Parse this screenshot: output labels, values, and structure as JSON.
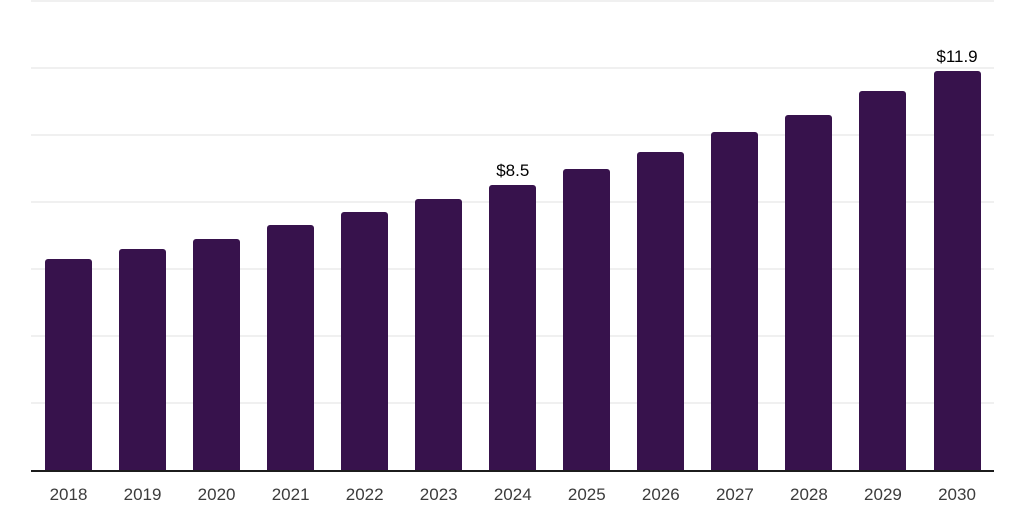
{
  "chart_data": {
    "type": "bar",
    "title": "",
    "xlabel": "",
    "ylabel": "",
    "categories": [
      "2018",
      "2019",
      "2020",
      "2021",
      "2022",
      "2023",
      "2024",
      "2025",
      "2026",
      "2027",
      "2028",
      "2029",
      "2030"
    ],
    "values": [
      6.3,
      6.6,
      6.9,
      7.3,
      7.7,
      8.1,
      8.5,
      9.0,
      9.5,
      10.1,
      10.6,
      11.3,
      11.9
    ],
    "value_labels": [
      "",
      "",
      "",
      "",
      "",
      "",
      "$8.5",
      "",
      "",
      "",
      "",
      "",
      "$11.9"
    ],
    "ylim": [
      0,
      14
    ],
    "gridline_step": 2,
    "grid": "horizontal-only",
    "legend": "none",
    "y_axis_tick_labels": "none",
    "colors": {
      "bar": "#37124c",
      "gridline": "#f0f0f0",
      "axis_line": "#1c1c1c",
      "value_label": "#000000",
      "tick_label": "#3c3c3c",
      "background": "#ffffff"
    }
  }
}
